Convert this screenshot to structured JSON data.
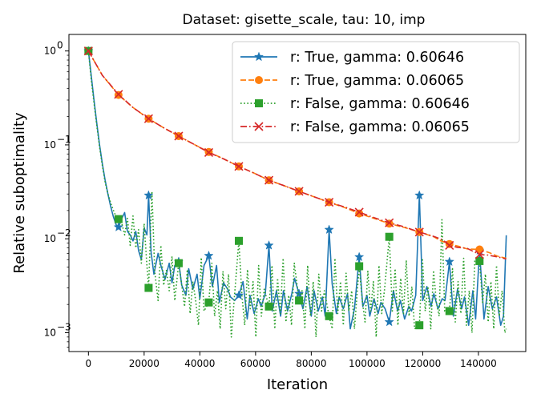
{
  "chart_data": {
    "type": "line",
    "title": "Dataset: gisette_scale, tau: 10, imp",
    "xlabel": "Iteration",
    "ylabel": "Relative suboptimality",
    "xlim": [
      -7000,
      157000
    ],
    "ylim": [
      0.00063,
      1.5
    ],
    "yscale": "log",
    "grid": false,
    "legend_position": "top-right",
    "x_ticks": [
      0,
      20000,
      40000,
      60000,
      80000,
      100000,
      120000,
      140000
    ],
    "x_tick_labels": [
      "0",
      "20000",
      "40000",
      "60000",
      "80000",
      "100000",
      "120000",
      "140000"
    ],
    "y_ticks": [
      0.001,
      0.01,
      0.1,
      1
    ],
    "y_tick_labels": [
      "10",
      "10",
      "10",
      "10"
    ],
    "y_tick_exponents": [
      "−3",
      "−2",
      "−1",
      "0"
    ],
    "series": [
      {
        "name": "r: True, gamma: 0.60646",
        "color": "#1f77b4",
        "dash": "solid",
        "marker": "star",
        "markers_at": [
          0,
          10800,
          21600,
          32400,
          43200,
          54000,
          64800,
          75600,
          86400,
          97200,
          108000,
          118800,
          129600,
          140400
        ],
        "x": [
          0,
          1000,
          2000,
          3000,
          4000,
          5000,
          6000,
          7000,
          8000,
          9000,
          10000,
          10800,
          12000,
          13000,
          14000,
          15000,
          16000,
          17000,
          18000,
          19000,
          20000,
          21000,
          21600,
          22500,
          23500,
          25000,
          26000,
          27500,
          29000,
          30000,
          31000,
          32400,
          33500,
          35000,
          36000,
          37500,
          39000,
          40000,
          41500,
          43200,
          44500,
          46000,
          47000,
          48500,
          50000,
          51000,
          52500,
          54000,
          55500,
          57000,
          58000,
          59500,
          61000,
          62000,
          63500,
          64800,
          66000,
          67500,
          69000,
          70000,
          71500,
          73000,
          74000,
          75600,
          77000,
          78500,
          80000,
          81000,
          82500,
          84000,
          85000,
          86400,
          87500,
          89000,
          90000,
          91500,
          93000,
          94000,
          95500,
          97200,
          98500,
          100000,
          101000,
          102500,
          104000,
          105000,
          106500,
          108000,
          109500,
          111000,
          112000,
          113500,
          115000,
          116000,
          117500,
          118800,
          120000,
          121500,
          123000,
          124000,
          125500,
          127000,
          128000,
          129600,
          131000,
          132500,
          134000,
          135000,
          136500,
          138000,
          139000,
          140400,
          142000,
          143500,
          145000,
          146500,
          148000,
          149000,
          150000
        ],
        "y": [
          1.0,
          0.55,
          0.3,
          0.17,
          0.1,
          0.063,
          0.042,
          0.03,
          0.022,
          0.017,
          0.014,
          0.0133,
          0.0165,
          0.019,
          0.012,
          0.011,
          0.0095,
          0.012,
          0.0075,
          0.006,
          0.013,
          0.011,
          0.029,
          0.0072,
          0.0042,
          0.007,
          0.0052,
          0.0037,
          0.0055,
          0.0034,
          0.0052,
          0.0057,
          0.0032,
          0.0025,
          0.0048,
          0.0029,
          0.0042,
          0.0023,
          0.0052,
          0.0066,
          0.0031,
          0.0052,
          0.0021,
          0.0034,
          0.0029,
          0.0024,
          0.0022,
          0.0025,
          0.0035,
          0.0014,
          0.0025,
          0.0016,
          0.0023,
          0.0019,
          0.0026,
          0.0085,
          0.0017,
          0.0028,
          0.0015,
          0.0028,
          0.0017,
          0.0026,
          0.0038,
          0.0026,
          0.0018,
          0.0031,
          0.0015,
          0.0028,
          0.0017,
          0.0024,
          0.0015,
          0.0125,
          0.0033,
          0.0016,
          0.0024,
          0.0018,
          0.0026,
          0.0011,
          0.0018,
          0.0064,
          0.0019,
          0.0025,
          0.0015,
          0.0023,
          0.0016,
          0.0021,
          0.0018,
          0.0013,
          0.0028,
          0.0017,
          0.0022,
          0.0014,
          0.0019,
          0.0017,
          0.0025,
          0.029,
          0.0022,
          0.0031,
          0.0019,
          0.0026,
          0.0018,
          0.0023,
          0.0022,
          0.0057,
          0.0015,
          0.0029,
          0.0018,
          0.0024,
          0.0012,
          0.0028,
          0.0014,
          0.0075,
          0.0014,
          0.0031,
          0.0018,
          0.0024,
          0.0012,
          0.0015,
          0.0109
        ]
      },
      {
        "name": "r: True, gamma: 0.06065",
        "color": "#ff7f0e",
        "dash": "dashed",
        "marker": "circle",
        "markers_at": [
          0,
          10800,
          21600,
          32400,
          43200,
          54000,
          64800,
          75600,
          86400,
          97200,
          108000,
          118800,
          129600,
          140400
        ],
        "x": [
          0,
          5000,
          10800,
          16000,
          21600,
          27000,
          32400,
          38000,
          43200,
          48500,
          54000,
          59500,
          64800,
          70000,
          75600,
          81000,
          86400,
          92000,
          97200,
          102500,
          108000,
          113000,
          118800,
          124000,
          126500,
          129600,
          133000,
          136000,
          140400,
          144000,
          147000,
          150000
        ],
        "y": [
          1.0,
          0.55,
          0.34,
          0.25,
          0.19,
          0.152,
          0.124,
          0.101,
          0.084,
          0.071,
          0.059,
          0.05,
          0.042,
          0.037,
          0.032,
          0.028,
          0.0245,
          0.0215,
          0.0186,
          0.0165,
          0.0145,
          0.0133,
          0.0118,
          0.0105,
          0.0095,
          0.0088,
          0.0083,
          0.0078,
          0.0077,
          0.0071,
          0.0065,
          0.0062
        ]
      },
      {
        "name": "r: False, gamma: 0.60646",
        "color": "#2ca02c",
        "dash": "dotted",
        "marker": "square",
        "markers_at": [
          0,
          10800,
          21600,
          32400,
          43200,
          54000,
          64800,
          75600,
          86400,
          97200,
          108000,
          118800,
          129600,
          140400
        ],
        "x": [
          0,
          1000,
          2000,
          3000,
          4000,
          5000,
          6000,
          7000,
          8000,
          9000,
          10000,
          10800,
          12000,
          13000,
          14000,
          15000,
          16000,
          17000,
          18000,
          19000,
          20000,
          21000,
          21600,
          22800,
          23800,
          25000,
          26000,
          27000,
          28000,
          29000,
          30000,
          31000,
          32400,
          33500,
          34500,
          35500,
          36500,
          37500,
          38500,
          39500,
          40500,
          41500,
          43200,
          44300,
          45300,
          46300,
          47300,
          48300,
          49300,
          50300,
          51300,
          52300,
          54000,
          55100,
          56100,
          57100,
          58100,
          59100,
          60100,
          61100,
          62100,
          63100,
          64800,
          65900,
          66900,
          67900,
          68900,
          69900,
          70900,
          71900,
          72900,
          73900,
          75600,
          76700,
          77700,
          78700,
          79700,
          80700,
          81700,
          82700,
          83700,
          84700,
          86400,
          87500,
          88500,
          89500,
          90500,
          91500,
          92500,
          93500,
          94500,
          95500,
          97200,
          98300,
          99300,
          100300,
          101300,
          102300,
          103300,
          104300,
          105300,
          106300,
          108000,
          109100,
          110100,
          111100,
          112100,
          113100,
          114100,
          115100,
          116100,
          117100,
          118800,
          119900,
          120900,
          121900,
          122900,
          123900,
          124900,
          125900,
          126900,
          127900,
          129600,
          130700,
          131700,
          132700,
          133700,
          134700,
          135700,
          136700,
          137700,
          138700,
          140400,
          141500,
          142500,
          143500,
          144500,
          145500,
          146500,
          147500,
          148500,
          149500,
          150000
        ],
        "y": [
          1.0,
          0.5,
          0.28,
          0.16,
          0.095,
          0.06,
          0.04,
          0.03,
          0.024,
          0.02,
          0.017,
          0.0162,
          0.0145,
          0.011,
          0.0165,
          0.0085,
          0.0175,
          0.008,
          0.0125,
          0.0055,
          0.0145,
          0.0052,
          0.003,
          0.032,
          0.0045,
          0.0022,
          0.0085,
          0.0032,
          0.0046,
          0.0028,
          0.0065,
          0.0022,
          0.0055,
          0.0032,
          0.0019,
          0.0047,
          0.0016,
          0.0035,
          0.0022,
          0.0012,
          0.0063,
          0.0017,
          0.0021,
          0.0055,
          0.0015,
          0.0028,
          0.0011,
          0.0045,
          0.0018,
          0.0042,
          0.0009,
          0.0022,
          0.0095,
          0.0025,
          0.0012,
          0.0047,
          0.0018,
          0.0035,
          0.0009,
          0.0052,
          0.0015,
          0.0029,
          0.0019,
          0.0052,
          0.0011,
          0.0038,
          0.0016,
          0.0062,
          0.0013,
          0.0025,
          0.0012,
          0.0055,
          0.0022,
          0.0028,
          0.0011,
          0.0052,
          0.0015,
          0.0035,
          0.0009,
          0.0042,
          0.0017,
          0.0028,
          0.0015,
          0.0011,
          0.0062,
          0.0016,
          0.0035,
          0.0012,
          0.0043,
          0.0017,
          0.0028,
          0.0011,
          0.0051,
          0.0022,
          0.0013,
          0.0045,
          0.0017,
          0.0035,
          0.0009,
          0.0052,
          0.0016,
          0.0029,
          0.0105,
          0.0017,
          0.0048,
          0.0012,
          0.0038,
          0.0016,
          0.0059,
          0.0015,
          0.0031,
          0.0011,
          0.0012,
          0.0062,
          0.0017,
          0.0031,
          0.0011,
          0.0046,
          0.0021,
          0.0015,
          0.016,
          0.0017,
          0.0017,
          0.0048,
          0.0013,
          0.0035,
          0.0016,
          0.0062,
          0.0012,
          0.0028,
          0.001,
          0.0058,
          0.0058,
          0.0021,
          0.0042,
          0.0013,
          0.0035,
          0.0011,
          0.0052,
          0.0015,
          0.0028,
          0.001,
          0.0011
        ]
      },
      {
        "name": "r: False, gamma: 0.06065",
        "color": "#d62728",
        "dash": "dashdot",
        "marker": "x",
        "markers_at": [
          0,
          10800,
          21600,
          32400,
          43200,
          54000,
          64800,
          75600,
          86400,
          97200,
          108000,
          118800,
          129600,
          140400
        ],
        "x": [
          0,
          5000,
          10800,
          16000,
          21600,
          27000,
          32400,
          38000,
          43200,
          48500,
          54000,
          59500,
          64800,
          70000,
          75600,
          81000,
          86400,
          92000,
          97200,
          102500,
          108000,
          113000,
          118800,
          124000,
          127000,
          129600,
          132500,
          136000,
          140400,
          143500,
          147000,
          150000
        ],
        "y": [
          1.0,
          0.55,
          0.345,
          0.25,
          0.19,
          0.152,
          0.124,
          0.101,
          0.083,
          0.071,
          0.059,
          0.05,
          0.042,
          0.037,
          0.032,
          0.028,
          0.0245,
          0.0218,
          0.0192,
          0.0168,
          0.0148,
          0.0135,
          0.0118,
          0.0106,
          0.0098,
          0.0085,
          0.0081,
          0.0079,
          0.0068,
          0.0067,
          0.0064,
          0.0061
        ]
      }
    ]
  }
}
